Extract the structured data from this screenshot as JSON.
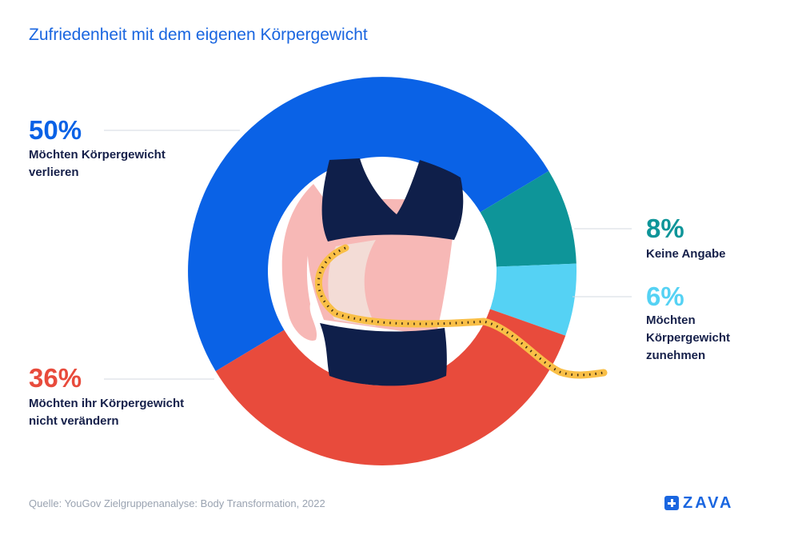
{
  "title": "Zufriedenheit mit dem eigenen Körpergewicht",
  "source": "Quelle: YouGov Zielgruppenanalyse: Body Transformation, 2022",
  "logo": {
    "text": "ZAVA",
    "icon": "plus-cross-icon"
  },
  "colors": {
    "title": "#1a66e0",
    "lose": "#0a62e6",
    "no_change": "#e84b3c",
    "no_answer": "#0e9599",
    "gain": "#55d2f4",
    "label_text": "#16204a",
    "source": "#9aa3b1"
  },
  "chart_data": {
    "type": "pie",
    "variant": "donut",
    "title": "Zufriedenheit mit dem eigenen Körpergewicht",
    "slices": [
      {
        "label": "Möchten Körpergewicht verlieren",
        "value": 50,
        "display": "50%",
        "color": "#0a62e6"
      },
      {
        "label": "Keine Angabe",
        "value": 8,
        "display": "8%",
        "color": "#0e9599"
      },
      {
        "label": "Möchten Körpergewicht zunehmen",
        "value": 6,
        "display": "6%",
        "color": "#55d2f4"
      },
      {
        "label": "Möchten ihr Körpergewicht nicht verändern",
        "value": 36,
        "display": "36%",
        "color": "#e84b3c"
      }
    ]
  },
  "labels": {
    "lose": {
      "pct": "50%",
      "text": "Möchten Körpergewicht\nverlieren"
    },
    "no_answer": {
      "pct": "8%",
      "text": "Keine Angabe"
    },
    "gain": {
      "pct": "6%",
      "text": "Möchten\nKörpergewicht\nzunehmen"
    },
    "no_change": {
      "pct": "36%",
      "text": "Möchten ihr Körpergewicht\nnicht verändern"
    }
  },
  "center_illustration": "body-with-measuring-tape-illustration"
}
